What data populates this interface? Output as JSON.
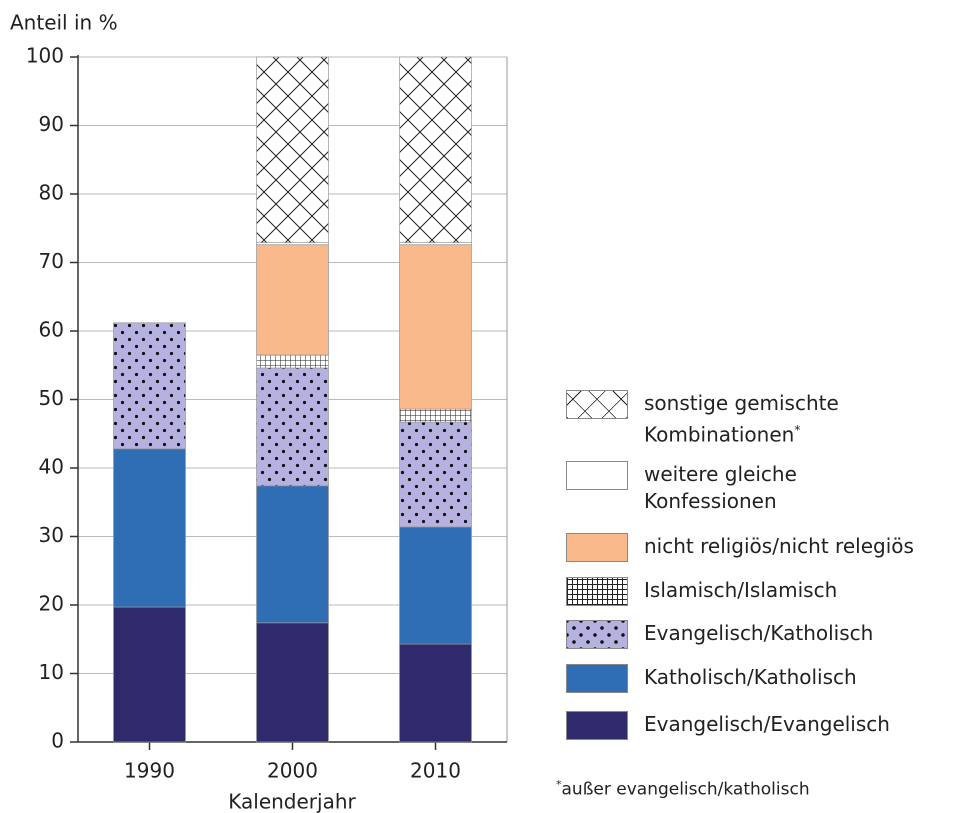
{
  "chart_data": {
    "type": "stacked_bar",
    "y_axis_label": "Anteil in %",
    "x_axis_label": "Kalenderjahr",
    "categories": [
      "1990",
      "2000",
      "2010"
    ],
    "ylim": [
      0,
      100
    ],
    "yticks": [
      0,
      10,
      20,
      30,
      40,
      50,
      60,
      70,
      80,
      90,
      100
    ],
    "grid": true,
    "series": [
      {
        "name": "Evangelisch/Evangelisch",
        "color": "#2e2a6b",
        "pattern": "solid",
        "values": [
          19.7,
          17.4,
          14.3
        ]
      },
      {
        "name": "Katholisch/Katholisch",
        "color": "#2f6db5",
        "pattern": "solid",
        "values": [
          23.1,
          20.0,
          17.1
        ]
      },
      {
        "name": "Evangelisch/Katholisch",
        "color": "#b5b1e0",
        "pattern": "dots",
        "values": [
          18.4,
          17.2,
          15.3
        ]
      },
      {
        "name": "Islamisch/Islamisch",
        "color": "#ffffff",
        "pattern": "grid",
        "values": [
          0,
          1.9,
          1.9
        ]
      },
      {
        "name": "nicht religiös/nicht relegiös",
        "color": "#f9b98a",
        "pattern": "solid",
        "values": [
          0,
          16.1,
          24.0
        ]
      },
      {
        "name": "weitere gleiche\nKonfessionen",
        "color": "#ffffff",
        "pattern": "solid",
        "values": [
          0,
          0.3,
          0.3
        ]
      },
      {
        "name": "sonstige gemischte\nKombinationen*",
        "color": "#ffffff",
        "pattern": "crosshatch",
        "values": [
          0,
          27.1,
          27.1
        ]
      }
    ],
    "legend": "right",
    "footnote": "*außer evangelisch/katholisch"
  }
}
